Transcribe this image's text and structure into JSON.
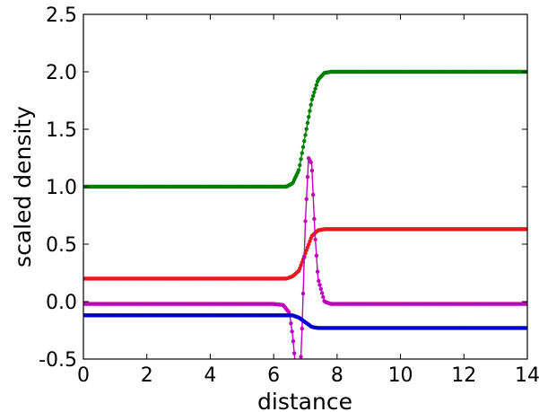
{
  "chart_data": {
    "type": "line",
    "title": "",
    "xlabel": "distance",
    "ylabel": "scaled density",
    "xlim": [
      0,
      14
    ],
    "ylim": [
      -0.5,
      2.5
    ],
    "x_ticks": [
      0,
      2,
      4,
      6,
      8,
      10,
      12,
      14
    ],
    "x_tick_labels": [
      "0",
      "2",
      "4",
      "6",
      "8",
      "10",
      "12",
      "14"
    ],
    "y_ticks": [
      -0.5,
      0.0,
      0.5,
      1.0,
      1.5,
      2.0,
      2.5
    ],
    "y_tick_labels": [
      "-0.5",
      "0.0",
      "0.5",
      "1.0",
      "1.5",
      "2.0",
      "2.5"
    ],
    "grid": false,
    "legend": "none",
    "series": [
      {
        "color": "#008000",
        "marker": "dot",
        "points": [
          [
            0,
            1.0
          ],
          [
            6.0,
            1.0
          ],
          [
            6.4,
            1.0
          ],
          [
            6.6,
            1.03
          ],
          [
            6.8,
            1.15
          ],
          [
            7.0,
            1.45
          ],
          [
            7.2,
            1.75
          ],
          [
            7.4,
            1.93
          ],
          [
            7.6,
            1.99
          ],
          [
            7.8,
            2.0
          ],
          [
            10.0,
            2.0
          ],
          [
            14.0,
            2.0
          ]
        ]
      },
      {
        "color": "#e41a1c",
        "marker": "dot",
        "points": [
          [
            0,
            0.2
          ],
          [
            6.0,
            0.2
          ],
          [
            6.4,
            0.2
          ],
          [
            6.6,
            0.22
          ],
          [
            6.8,
            0.27
          ],
          [
            7.0,
            0.42
          ],
          [
            7.2,
            0.57
          ],
          [
            7.4,
            0.62
          ],
          [
            7.6,
            0.63
          ],
          [
            10.0,
            0.63
          ],
          [
            14.0,
            0.63
          ]
        ]
      },
      {
        "color": "#bf00bf",
        "marker": "dot",
        "points": [
          [
            0,
            -0.02
          ],
          [
            6.0,
            -0.02
          ],
          [
            6.3,
            -0.03
          ],
          [
            6.5,
            -0.1
          ],
          [
            6.6,
            -0.3
          ],
          [
            6.7,
            -0.6
          ],
          [
            6.8,
            -0.9
          ],
          [
            6.9,
            -0.2
          ],
          [
            7.0,
            0.7
          ],
          [
            7.1,
            1.25
          ],
          [
            7.2,
            1.2
          ],
          [
            7.3,
            0.6
          ],
          [
            7.4,
            0.2
          ],
          [
            7.6,
            0.0
          ],
          [
            7.8,
            -0.02
          ],
          [
            10.0,
            -0.02
          ],
          [
            14.0,
            -0.02
          ]
        ]
      },
      {
        "color": "#0000cc",
        "marker": "dot",
        "points": [
          [
            0,
            -0.12
          ],
          [
            6.0,
            -0.12
          ],
          [
            6.6,
            -0.12
          ],
          [
            6.8,
            -0.14
          ],
          [
            7.0,
            -0.18
          ],
          [
            7.2,
            -0.22
          ],
          [
            7.4,
            -0.23
          ],
          [
            10.0,
            -0.23
          ],
          [
            14.0,
            -0.23
          ]
        ]
      }
    ]
  }
}
